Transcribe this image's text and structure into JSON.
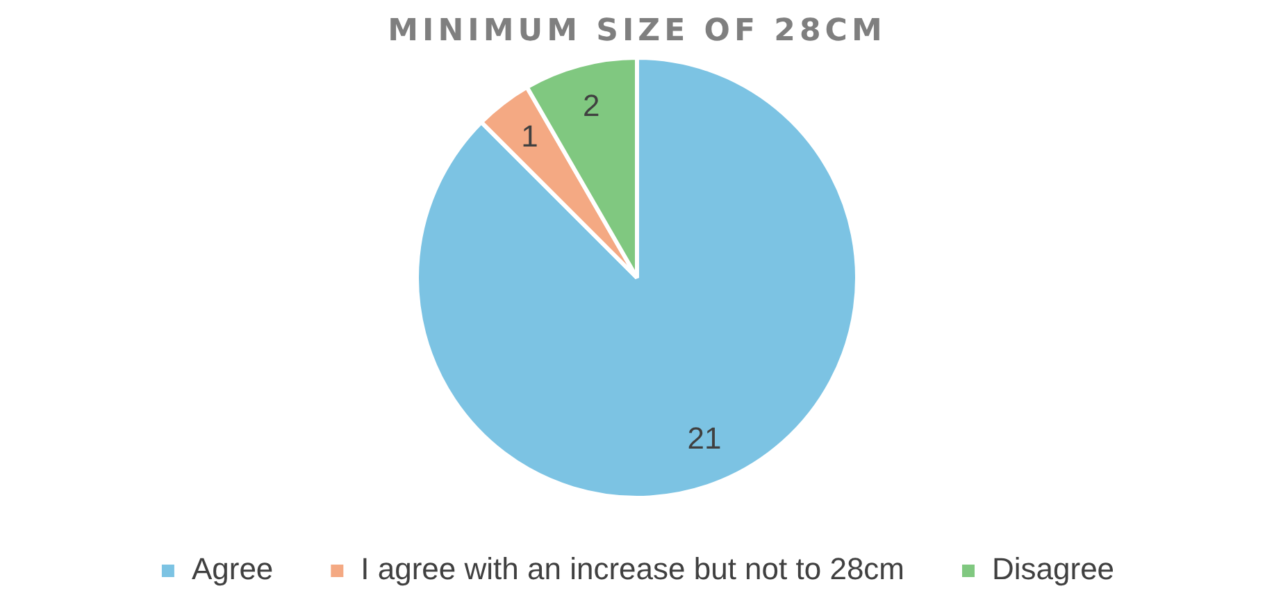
{
  "chart_data": {
    "type": "pie",
    "title": "MINIMUM SIZE OF 28CM",
    "categories": [
      "Agree",
      "I agree with an increase but not to 28cm",
      "Disagree"
    ],
    "values": [
      21,
      1,
      2
    ],
    "colors": [
      "#7cc3e3",
      "#f4a983",
      "#80c880"
    ],
    "data_labels": true,
    "legend": "bottom"
  }
}
